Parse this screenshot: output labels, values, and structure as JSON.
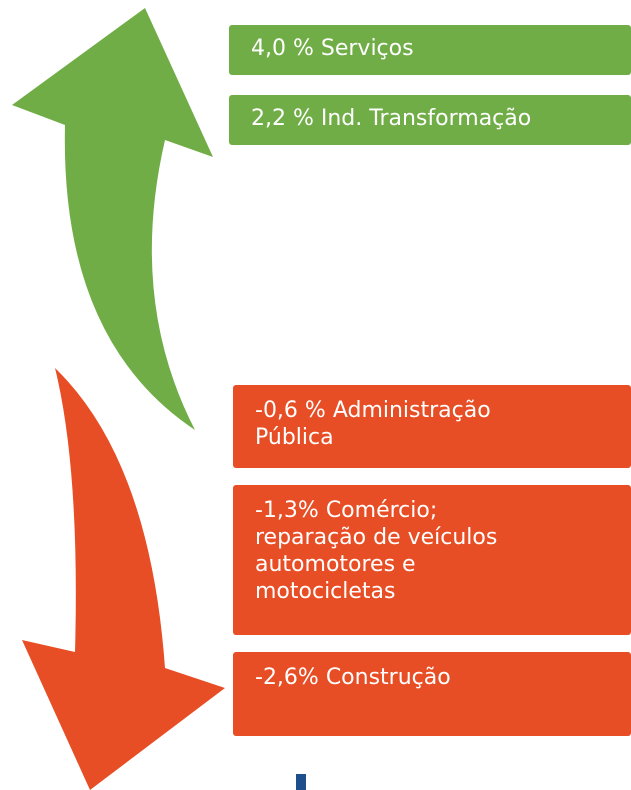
{
  "growth": [
    {
      "lines": [
        "4,0 % Serviços"
      ]
    },
    {
      "lines": [
        "2,2 % Ind. Transformação"
      ]
    }
  ],
  "decline": [
    {
      "lines": [
        "-0,6 % Administração",
        "Pública"
      ]
    },
    {
      "lines": [
        "-1,3% Comércio;",
        "reparação de veículos",
        "automotores e",
        "motocicletas"
      ]
    },
    {
      "lines": [
        "-2,6% Construção"
      ]
    }
  ]
}
